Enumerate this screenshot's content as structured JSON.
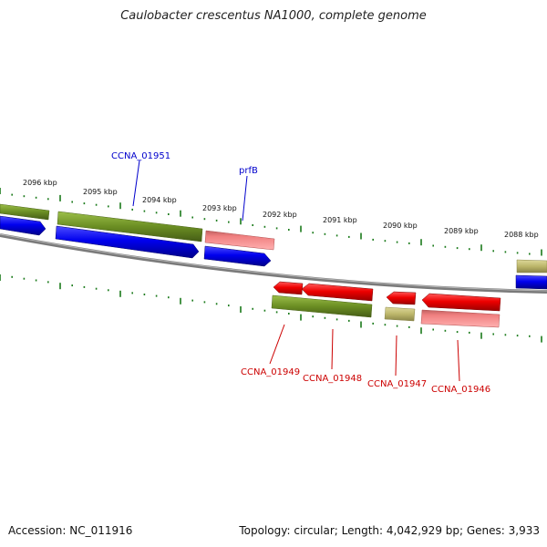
{
  "title": "Caulobacter crescentus NA1000, complete genome",
  "footer": {
    "accession": "Accession: NC_011916",
    "summary": "Topology: circular; Length: 4,042,929 bp; Genes: 3,933"
  },
  "colors": {
    "backbone": "#808080",
    "tick": "#1a7a1a",
    "cds_forward": "#0000ee",
    "cds_reverse": "#ee0000",
    "gene_dark": "#6b8e23",
    "gene_pink": "#f08080",
    "gene_khaki": "#bdb76b",
    "label_forward": "#0000cc",
    "label_reverse": "#cc0000"
  },
  "scale_labels": [
    "2096 kbp",
    "2095 kbp",
    "2094 kbp",
    "2093 kbp",
    "2092 kbp",
    "2091 kbp",
    "2090 kbp",
    "2089 kbp",
    "2088 kbp"
  ],
  "gene_labels_forward": [
    "CCNA_01951",
    "prfB"
  ],
  "gene_labels_reverse": [
    "CCNA_01949",
    "CCNA_01948",
    "CCNA_01947",
    "CCNA_01946"
  ]
}
